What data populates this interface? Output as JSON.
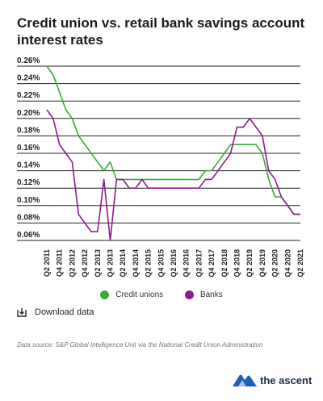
{
  "title": "Credit union vs. retail bank savings account interest rates",
  "download_label": "Download data",
  "source_text": "Data source: S&P Global Intelligence Unit via the National Credit Union Administration",
  "brand": {
    "name": "the ascent",
    "color": "#1d5fb8"
  },
  "chart_data": {
    "type": "line",
    "title": "Credit union vs. retail bank savings account interest rates",
    "xlabel": "",
    "ylabel": "",
    "ylim": [
      0.055,
      0.265
    ],
    "yticks": [
      "0.26%",
      "0.24%",
      "0.22%",
      "0.20%",
      "0.18%",
      "0.16%",
      "0.14%",
      "0.12%",
      "0.10%",
      "0.08%",
      "0.06%"
    ],
    "ytick_values": [
      0.26,
      0.24,
      0.22,
      0.2,
      0.18,
      0.16,
      0.14,
      0.12,
      0.1,
      0.08,
      0.06
    ],
    "grid": true,
    "legend_position": "bottom",
    "x": [
      "Q2 2011",
      "Q3 2011",
      "Q4 2011",
      "Q1 2012",
      "Q2 2012",
      "Q3 2012",
      "Q4 2012",
      "Q1 2013",
      "Q2 2013",
      "Q3 2013",
      "Q4 2013",
      "Q1 2014",
      "Q2 2014",
      "Q3 2014",
      "Q4 2014",
      "Q1 2015",
      "Q2 2015",
      "Q3 2015",
      "Q4 2015",
      "Q1 2016",
      "Q2 2016",
      "Q3 2016",
      "Q4 2016",
      "Q1 2017",
      "Q2 2017",
      "Q3 2017",
      "Q4 2017",
      "Q1 2018",
      "Q2 2018",
      "Q3 2018",
      "Q4 2018",
      "Q1 2019",
      "Q2 2019",
      "Q3 2019",
      "Q4 2019",
      "Q1 2020",
      "Q2 2020",
      "Q3 2020",
      "Q4 2020",
      "Q1 2021",
      "Q2 2021"
    ],
    "xtick_labels": [
      "Q2 2011",
      "Q4 2011",
      "Q2 2012",
      "Q4 2012",
      "Q2 2013",
      "Q4 2013",
      "Q2 2014",
      "Q4 2014",
      "Q2 2015",
      "Q4 2015",
      "Q2 2016",
      "Q4 2016",
      "Q2 2017",
      "Q4 2017",
      "Q2 2018",
      "Q4 2018",
      "Q2 2019",
      "Q4 2019",
      "Q2 2020",
      "Q4 2020",
      "Q2 2021"
    ],
    "series": [
      {
        "name": "Credit unions",
        "color": "#3aaa35",
        "values": [
          0.26,
          0.25,
          0.23,
          0.21,
          0.2,
          0.18,
          0.17,
          0.16,
          0.15,
          0.14,
          0.15,
          0.13,
          0.13,
          0.13,
          0.13,
          0.13,
          0.13,
          0.13,
          0.13,
          0.13,
          0.13,
          0.13,
          0.13,
          0.13,
          0.13,
          0.14,
          0.14,
          0.15,
          0.16,
          0.17,
          0.17,
          0.17,
          0.17,
          0.17,
          0.16,
          0.13,
          0.11,
          0.11,
          0.1,
          0.09,
          0.09
        ]
      },
      {
        "name": "Banks",
        "color": "#8e1b8e",
        "values": [
          0.21,
          0.2,
          0.17,
          0.16,
          0.15,
          0.09,
          0.08,
          0.07,
          0.07,
          0.13,
          0.06,
          0.13,
          0.13,
          0.12,
          0.12,
          0.13,
          0.12,
          0.12,
          0.12,
          0.12,
          0.12,
          0.12,
          0.12,
          0.12,
          0.12,
          0.13,
          0.13,
          0.14,
          0.15,
          0.16,
          0.19,
          0.19,
          0.2,
          0.19,
          0.18,
          0.14,
          0.13,
          0.11,
          0.1,
          0.09,
          0.09
        ]
      }
    ]
  }
}
